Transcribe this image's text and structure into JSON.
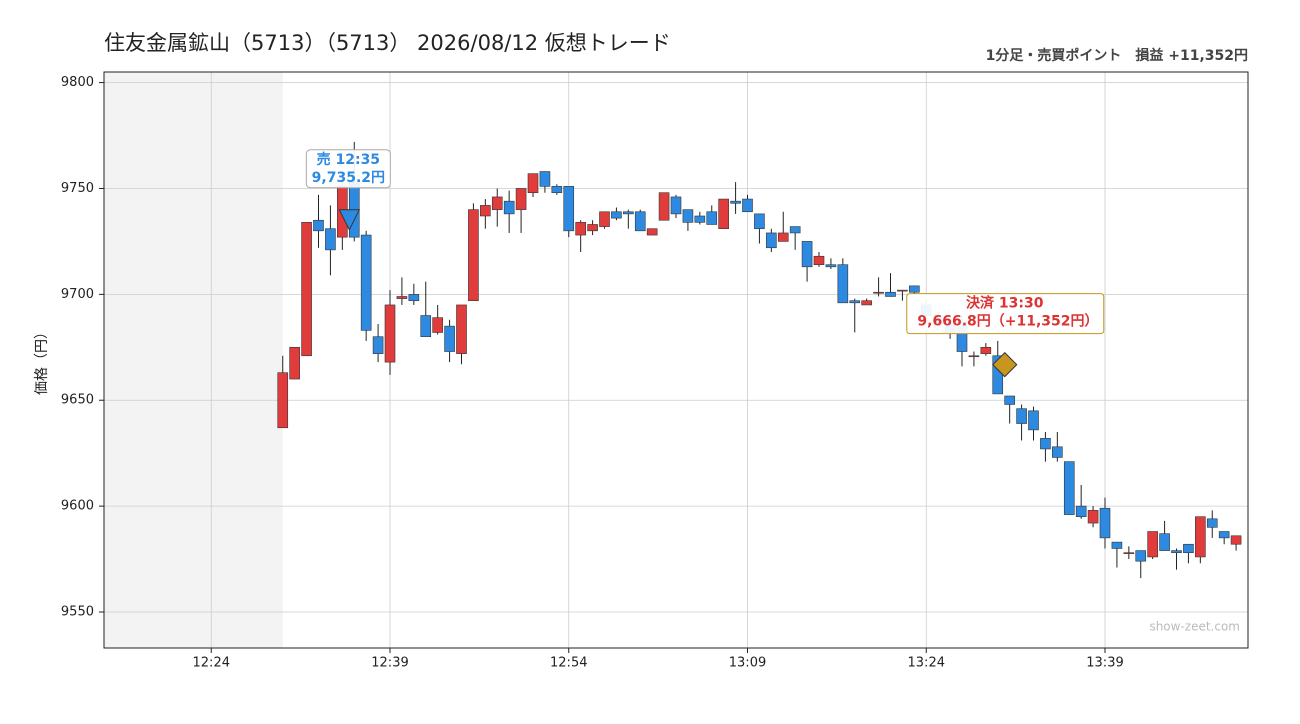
{
  "chart_data": {
    "type": "candlestick",
    "title": "住友金属鉱山（5713）（5713） 2026/08/12 仮想トレード",
    "subtitle": "1分足・売買ポイント　損益 +11,352円",
    "y_label": "価格（円）",
    "watermark": "show-zeet.com",
    "x": [
      "12:30",
      "12:31",
      "12:32",
      "12:33",
      "12:34",
      "12:35",
      "12:36",
      "12:37",
      "12:38",
      "12:39",
      "12:40",
      "12:41",
      "12:42",
      "12:43",
      "12:44",
      "12:45",
      "12:46",
      "12:47",
      "12:48",
      "12:49",
      "12:50",
      "12:51",
      "12:52",
      "12:53",
      "12:54",
      "12:55",
      "12:56",
      "12:57",
      "12:58",
      "12:59",
      "13:00",
      "13:01",
      "13:02",
      "13:03",
      "13:04",
      "13:05",
      "13:06",
      "13:07",
      "13:08",
      "13:09",
      "13:10",
      "13:11",
      "13:12",
      "13:13",
      "13:14",
      "13:15",
      "13:16",
      "13:17",
      "13:18",
      "13:19",
      "13:20",
      "13:21",
      "13:22",
      "13:23",
      "13:24",
      "13:25",
      "13:26",
      "13:27",
      "13:28",
      "13:29",
      "13:30",
      "13:31",
      "13:32",
      "13:33",
      "13:34",
      "13:35",
      "13:36",
      "13:37",
      "13:38",
      "13:39",
      "13:40",
      "13:41",
      "13:42",
      "13:43",
      "13:44",
      "13:45",
      "13:46",
      "13:47",
      "13:48",
      "13:49",
      "13:50"
    ],
    "open": [
      9637,
      9660,
      9671,
      9735,
      9731,
      9727,
      9753,
      9728,
      9680,
      9668,
      9698,
      9700,
      9690,
      9682,
      9685,
      9672,
      9697,
      9737,
      9740,
      9744,
      9740,
      9748,
      9758,
      9751,
      9751,
      9728,
      9730,
      9732,
      9739,
      9739,
      9739,
      9728,
      9735,
      9746,
      9740,
      9737,
      9739,
      9731,
      9744,
      9745,
      9738,
      9729,
      9725,
      9732,
      9725,
      9714,
      9714,
      9714,
      9697,
      9695,
      9701,
      9701,
      9702,
      9704,
      9695,
      9690,
      9686,
      9687,
      9671,
      9672,
      9671,
      9652,
      9646,
      9645,
      9632,
      9628,
      9621,
      9600,
      9592,
      9599,
      9583,
      9578,
      9579,
      9576,
      9587,
      9579,
      9582,
      9576,
      9594,
      9588,
      9582
    ],
    "high": [
      9671,
      9675,
      9734,
      9747,
      9742,
      9754,
      9772,
      9730,
      9686,
      9702,
      9708,
      9705,
      9706,
      9695,
      9688,
      9695,
      9743,
      9745,
      9750,
      9749,
      9750,
      9757,
      9758,
      9752,
      9751,
      9735,
      9735,
      9739,
      9741,
      9740,
      9740,
      9731,
      9748,
      9747,
      9740,
      9739,
      9742,
      9745,
      9753,
      9747,
      9738,
      9731,
      9739,
      9732,
      9725,
      9720,
      9717,
      9717,
      9698,
      9698,
      9708,
      9710,
      9702,
      9704,
      9697,
      9692,
      9688,
      9690,
      9673,
      9677,
      9678,
      9652,
      9648,
      9647,
      9635,
      9635,
      9621,
      9610,
      9600,
      9604,
      9583,
      9581,
      9579,
      9588,
      9593,
      9580,
      9582,
      9595,
      9598,
      9588,
      9586
    ],
    "low": [
      9637,
      9660,
      9671,
      9722,
      9709,
      9721,
      9725,
      9678,
      9668,
      9662,
      9695,
      9695,
      9680,
      9681,
      9668,
      9667,
      9697,
      9731,
      9732,
      9729,
      9729,
      9746,
      9748,
      9747,
      9727,
      9720,
      9728,
      9731,
      9735,
      9731,
      9730,
      9728,
      9735,
      9736,
      9730,
      9733,
      9733,
      9731,
      9738,
      9739,
      9724,
      9720,
      9725,
      9721,
      9706,
      9713,
      9712,
      9696,
      9682,
      9695,
      9699,
      9699,
      9697,
      9700,
      9689,
      9685,
      9679,
      9666,
      9666,
      9671,
      9653,
      9639,
      9631,
      9631,
      9621,
      9621,
      9596,
      9594,
      9590,
      9580,
      9571,
      9575,
      9566,
      9575,
      9579,
      9570,
      9573,
      9573,
      9585,
      9582,
      9579
    ],
    "close": [
      9663,
      9675,
      9734,
      9730,
      9721,
      9751,
      9727,
      9683,
      9672,
      9695,
      9699,
      9697,
      9680,
      9689,
      9673,
      9695,
      9740,
      9742,
      9746,
      9738,
      9750,
      9757,
      9751,
      9748,
      9730,
      9734,
      9733,
      9739,
      9736,
      9738,
      9730,
      9731,
      9748,
      9738,
      9734,
      9734,
      9733,
      9745,
      9743,
      9739,
      9731,
      9722,
      9729,
      9729,
      9713,
      9718,
      9713,
      9696,
      9696,
      9697,
      9701,
      9699,
      9702,
      9701,
      9690,
      9686,
      9682,
      9673,
      9671,
      9675,
      9653,
      9648,
      9639,
      9636,
      9627,
      9623,
      9596,
      9595,
      9598,
      9585,
      9580,
      9578,
      9574,
      9588,
      9579,
      9578,
      9578,
      9595,
      9590,
      9585,
      9586
    ],
    "up_color": "#e03c3c",
    "down_color": "#2d8ae0",
    "xlim": [
      "12:15",
      "13:51"
    ],
    "xticks": [
      "12:24",
      "12:39",
      "12:54",
      "13:09",
      "13:24",
      "13:39"
    ],
    "ylim": [
      9533,
      9805
    ],
    "yticks": [
      9550,
      9600,
      9650,
      9700,
      9750,
      9800
    ],
    "grid": true,
    "trades": [
      {
        "label": "売 12:35",
        "time": "12:35",
        "price": 9735.2,
        "price_label": "9,735.2円",
        "color": "#2d8ae0",
        "marker": "triangle-down"
      },
      {
        "label": "決済 13:30",
        "time": "13:30",
        "price": 9666.8,
        "price_label": "9,666.8円",
        "pnl_label": "（+11,352円）",
        "color": "#c8961e",
        "marker": "diamond"
      }
    ]
  }
}
